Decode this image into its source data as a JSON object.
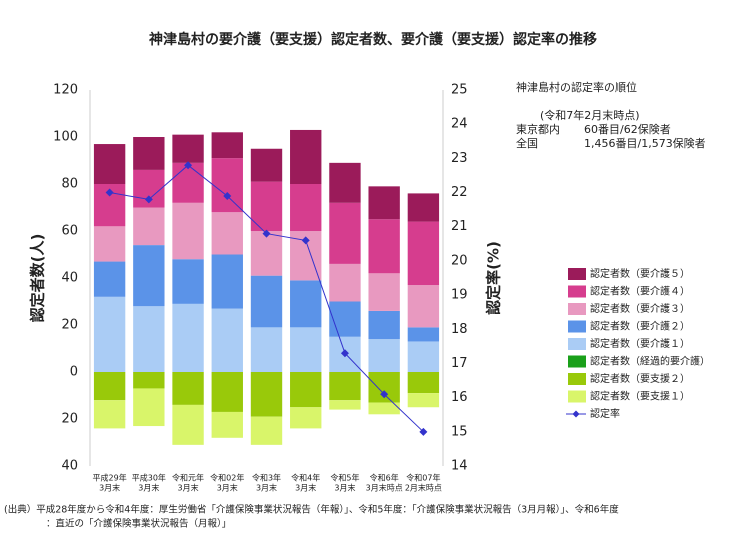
{
  "chart_data": {
    "type": "bar",
    "title": "神津島村の要介護（要支援）認定者数、要介護（要支援）認定率の推移",
    "ylabel": "認定者数(人)",
    "y2label": "認定率(%)",
    "categories": [
      [
        "平成29年",
        "3月末"
      ],
      [
        "平成30年",
        "3月末"
      ],
      [
        "令和元年",
        "3月末"
      ],
      [
        "令和02年",
        "3月末"
      ],
      [
        "令和3年",
        "3月末"
      ],
      [
        "令和4年",
        "3月末"
      ],
      [
        "令和5年",
        "3月末"
      ],
      [
        "令和6年",
        "3月末時点"
      ],
      [
        "令和07年",
        "2月末時点"
      ]
    ],
    "ylim": [
      -40,
      120
    ],
    "yticks": [
      {
        "value": -40,
        "label": "40"
      },
      {
        "value": -20,
        "label": "20"
      },
      0,
      20,
      40,
      60,
      80,
      100,
      120
    ],
    "y2lim": [
      14,
      25
    ],
    "y2ticks": [
      14,
      15,
      16,
      17,
      18,
      19,
      20,
      21,
      22,
      23,
      24,
      25
    ],
    "series": [
      {
        "name": "認定者数（要介護５）",
        "color": "#9b1b5a",
        "values": [
          17,
          14,
          12,
          11,
          14,
          23,
          17,
          14,
          12
        ]
      },
      {
        "name": "認定者数（要介護４）",
        "color": "#d63d8e",
        "values": [
          18,
          16,
          17,
          23,
          21,
          20,
          26,
          23,
          27
        ]
      },
      {
        "name": "認定者数（要介護３）",
        "color": "#e899c0",
        "values": [
          15,
          16,
          24,
          18,
          19,
          21,
          16,
          16,
          18
        ]
      },
      {
        "name": "認定者数（要介護２）",
        "color": "#5b93e8",
        "values": [
          15,
          26,
          19,
          23,
          22,
          20,
          15,
          12,
          6
        ]
      },
      {
        "name": "認定者数（要介護１）",
        "color": "#aaccf5",
        "values": [
          32,
          28,
          29,
          27,
          19,
          19,
          15,
          14,
          13
        ]
      },
      {
        "name": "認定者数（経過的要介護）",
        "color": "#1aa01a",
        "values": [
          0,
          0,
          0,
          0,
          0,
          0,
          0,
          0,
          0
        ]
      },
      {
        "name": "認定者数（要支援２）",
        "color": "#99c90a",
        "values": [
          -12,
          -7,
          -14,
          -17,
          -19,
          -15,
          -12,
          -13,
          -9
        ]
      },
      {
        "name": "認定者数（要支援１）",
        "color": "#d9f56a",
        "values": [
          -12,
          -16,
          -17,
          -11,
          -12,
          -9,
          -4,
          -5,
          -6
        ]
      },
      {
        "name": "認定率",
        "color": "#3333cc",
        "axis": "y2",
        "values": [
          22.0,
          21.8,
          22.8,
          21.9,
          20.8,
          20.6,
          17.3,
          16.1,
          15.0
        ]
      }
    ]
  },
  "ranking": {
    "title": "神津島村の認定率の順位",
    "as_of": "(令和7年2月末時点)",
    "rows": [
      [
        "東京都内",
        "60番目/62保険者"
      ],
      [
        "全国",
        "1,456番目/1,573保険者"
      ]
    ]
  },
  "source": [
    "(出典）平成28年度から令和4年度：厚生労働省「介護保険事業状況報告（年報）」、令和5年度：「介護保険事業状況報告（3月月報）」、令和6年度",
    "：直近の「介護保険事業状況報告（月報）」"
  ]
}
